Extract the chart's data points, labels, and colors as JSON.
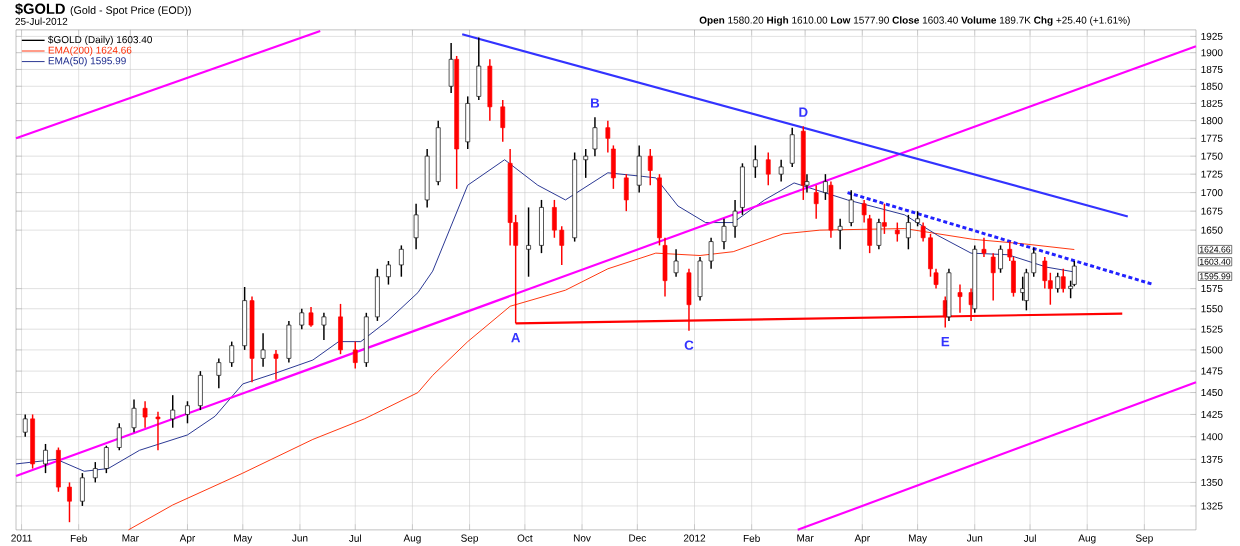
{
  "chart_data": {
    "type": "candlestick",
    "title": "$GOLD",
    "subtitle": "(Gold - Spot Price (EOD))",
    "annotations": [
      "25-Jul-2012",
      "**Open** 1580.20 **High** 1610.00 **Low** 1577.90 **Close** 1603.40 **Volume** 189.7K **Chg** +25.40 (+1.61%)",
      {
        "text": "A",
        "x": "2011-09-26",
        "y": 1532
      },
      {
        "text": "B",
        "x": "2011-11-08",
        "y": 1805
      },
      {
        "text": "C",
        "x": "2011-12-29",
        "y": 1523
      },
      {
        "text": "D",
        "x": "2012-02-29",
        "y": 1792
      },
      {
        "text": "E",
        "x": "2012-05-16",
        "y": 1527
      },
      "1624.66",
      "1603.40",
      "1595.99"
    ],
    "series": [
      {
        "name": "$GOLD (Daily) 1603.40",
        "x": [
          "2011-01-03",
          "2011-01-07",
          "2011-01-14",
          "2011-01-21",
          "2011-01-27",
          "2011-02-03",
          "2011-02-10",
          "2011-02-16",
          "2011-02-23",
          "2011-03-03",
          "2011-03-09",
          "2011-03-16",
          "2011-03-24",
          "2011-04-01",
          "2011-04-08",
          "2011-04-18",
          "2011-04-25",
          "2011-05-02",
          "2011-05-06",
          "2011-05-12",
          "2011-05-19",
          "2011-05-26",
          "2011-06-02",
          "2011-06-07",
          "2011-06-14",
          "2011-06-23",
          "2011-07-01",
          "2011-07-07",
          "2011-07-13",
          "2011-07-19",
          "2011-07-26",
          "2011-08-03",
          "2011-08-09",
          "2011-08-15",
          "2011-08-22",
          "2011-08-25",
          "2011-08-31",
          "2011-09-06",
          "2011-09-12",
          "2011-09-19",
          "2011-09-23",
          "2011-09-26",
          "2011-10-03",
          "2011-10-10",
          "2011-10-17",
          "2011-10-21",
          "2011-10-28",
          "2011-11-03",
          "2011-11-08",
          "2011-11-15",
          "2011-11-18",
          "2011-11-25",
          "2011-12-02",
          "2011-12-08",
          "2011-12-13",
          "2011-12-16",
          "2011-12-22",
          "2011-12-29",
          "2012-01-04",
          "2012-01-10",
          "2012-01-17",
          "2012-01-23",
          "2012-01-27",
          "2012-02-03",
          "2012-02-10",
          "2012-02-17",
          "2012-02-23",
          "2012-02-29",
          "2012-03-02",
          "2012-03-07",
          "2012-03-12",
          "2012-03-15",
          "2012-03-20",
          "2012-03-26",
          "2012-04-02",
          "2012-04-05",
          "2012-04-10",
          "2012-04-13",
          "2012-04-20",
          "2012-04-26",
          "2012-05-01",
          "2012-05-04",
          "2012-05-08",
          "2012-05-11",
          "2012-05-16",
          "2012-05-18",
          "2012-05-24",
          "2012-05-30",
          "2012-06-01",
          "2012-06-06",
          "2012-06-11",
          "2012-06-15",
          "2012-06-20",
          "2012-06-22",
          "2012-06-27",
          "2012-06-29",
          "2012-07-03",
          "2012-07-09",
          "2012-07-12",
          "2012-07-16",
          "2012-07-19",
          "2012-07-23",
          "2012-07-25"
        ],
        "ohlc": [
          [
            1405,
            1425,
            1400,
            1420
          ],
          [
            1420,
            1425,
            1365,
            1370
          ],
          [
            1370,
            1392,
            1360,
            1385
          ],
          [
            1385,
            1388,
            1340,
            1345
          ],
          [
            1345,
            1350,
            1308,
            1330
          ],
          [
            1330,
            1360,
            1325,
            1355
          ],
          [
            1355,
            1372,
            1350,
            1365
          ],
          [
            1365,
            1390,
            1360,
            1388
          ],
          [
            1388,
            1415,
            1385,
            1410
          ],
          [
            1410,
            1442,
            1405,
            1432
          ],
          [
            1432,
            1440,
            1410,
            1422
          ],
          [
            1422,
            1428,
            1385,
            1420
          ],
          [
            1420,
            1447,
            1410,
            1430
          ],
          [
            1425,
            1440,
            1415,
            1435
          ],
          [
            1435,
            1475,
            1430,
            1470
          ],
          [
            1470,
            1490,
            1455,
            1485
          ],
          [
            1485,
            1510,
            1480,
            1505
          ],
          [
            1505,
            1577,
            1500,
            1560
          ],
          [
            1560,
            1565,
            1462,
            1490
          ],
          [
            1490,
            1520,
            1480,
            1500
          ],
          [
            1495,
            1500,
            1465,
            1490
          ],
          [
            1490,
            1535,
            1485,
            1530
          ],
          [
            1530,
            1550,
            1525,
            1545
          ],
          [
            1545,
            1552,
            1528,
            1530
          ],
          [
            1530,
            1545,
            1512,
            1540
          ],
          [
            1540,
            1556,
            1495,
            1500
          ],
          [
            1500,
            1510,
            1478,
            1485
          ],
          [
            1485,
            1545,
            1480,
            1540
          ],
          [
            1540,
            1600,
            1535,
            1590
          ],
          [
            1590,
            1610,
            1580,
            1605
          ],
          [
            1605,
            1630,
            1590,
            1625
          ],
          [
            1640,
            1685,
            1625,
            1670
          ],
          [
            1690,
            1760,
            1680,
            1750
          ],
          [
            1715,
            1800,
            1710,
            1790
          ],
          [
            1850,
            1915,
            1840,
            1890
          ],
          [
            1890,
            1895,
            1705,
            1760
          ],
          [
            1770,
            1835,
            1760,
            1825
          ],
          [
            1835,
            1923,
            1830,
            1880
          ],
          [
            1880,
            1890,
            1800,
            1820
          ],
          [
            1820,
            1830,
            1770,
            1790
          ],
          [
            1740,
            1760,
            1630,
            1660
          ],
          [
            1660,
            1670,
            1532,
            1630
          ],
          [
            1625,
            1680,
            1590,
            1630
          ],
          [
            1630,
            1690,
            1620,
            1680
          ],
          [
            1680,
            1690,
            1640,
            1650
          ],
          [
            1650,
            1655,
            1605,
            1630
          ],
          [
            1640,
            1755,
            1635,
            1745
          ],
          [
            1745,
            1760,
            1720,
            1750
          ],
          [
            1760,
            1805,
            1750,
            1790
          ],
          [
            1790,
            1800,
            1755,
            1775
          ],
          [
            1760,
            1765,
            1705,
            1720
          ],
          [
            1720,
            1725,
            1675,
            1690
          ],
          [
            1710,
            1765,
            1700,
            1750
          ],
          [
            1750,
            1760,
            1710,
            1730
          ],
          [
            1720,
            1725,
            1630,
            1640
          ],
          [
            1630,
            1640,
            1565,
            1585
          ],
          [
            1595,
            1625,
            1590,
            1610
          ],
          [
            1595,
            1600,
            1523,
            1555
          ],
          [
            1565,
            1615,
            1560,
            1610
          ],
          [
            1610,
            1640,
            1600,
            1635
          ],
          [
            1635,
            1665,
            1625,
            1655
          ],
          [
            1655,
            1690,
            1640,
            1675
          ],
          [
            1680,
            1740,
            1670,
            1735
          ],
          [
            1735,
            1765,
            1720,
            1745
          ],
          [
            1745,
            1755,
            1710,
            1725
          ],
          [
            1725,
            1745,
            1715,
            1735
          ],
          [
            1740,
            1790,
            1735,
            1780
          ],
          [
            1785,
            1792,
            1690,
            1710
          ],
          [
            1710,
            1725,
            1700,
            1715
          ],
          [
            1700,
            1710,
            1665,
            1685
          ],
          [
            1700,
            1725,
            1690,
            1715
          ],
          [
            1710,
            1715,
            1640,
            1650
          ],
          [
            1650,
            1665,
            1625,
            1655
          ],
          [
            1660,
            1703,
            1655,
            1690
          ],
          [
            1685,
            1690,
            1660,
            1670
          ],
          [
            1665,
            1670,
            1620,
            1630
          ],
          [
            1630,
            1665,
            1625,
            1660
          ],
          [
            1660,
            1685,
            1645,
            1655
          ],
          [
            1650,
            1660,
            1635,
            1645
          ],
          [
            1640,
            1670,
            1625,
            1660
          ],
          [
            1660,
            1675,
            1655,
            1665
          ],
          [
            1655,
            1660,
            1635,
            1640
          ],
          [
            1640,
            1645,
            1590,
            1600
          ],
          [
            1595,
            1600,
            1575,
            1580
          ],
          [
            1560,
            1565,
            1527,
            1540
          ],
          [
            1540,
            1600,
            1535,
            1595
          ],
          [
            1570,
            1580,
            1545,
            1565
          ],
          [
            1570,
            1575,
            1535,
            1555
          ],
          [
            1550,
            1630,
            1545,
            1625
          ],
          [
            1625,
            1640,
            1615,
            1620
          ],
          [
            1615,
            1620,
            1560,
            1595
          ],
          [
            1600,
            1630,
            1595,
            1625
          ],
          [
            1625,
            1635,
            1610,
            1615
          ],
          [
            1610,
            1615,
            1565,
            1570
          ],
          [
            1570,
            1590,
            1560,
            1575
          ],
          [
            1560,
            1600,
            1548,
            1595
          ],
          [
            1595,
            1627,
            1590,
            1620
          ],
          [
            1610,
            1615,
            1575,
            1585
          ],
          [
            1585,
            1595,
            1555,
            1575
          ],
          [
            1575,
            1595,
            1570,
            1590
          ],
          [
            1590,
            1600,
            1570,
            1575
          ],
          [
            1575,
            1585,
            1563,
            1578
          ],
          [
            1580.2,
            1610,
            1577.9,
            1603.4
          ]
        ],
        "colors": [
          "#000000",
          "#ff0000",
          "#000000",
          "#ff0000",
          "#ff0000",
          "#000000",
          "#000000",
          "#000000",
          "#000000",
          "#000000",
          "#ff0000",
          "#ff0000",
          "#000000",
          "#000000",
          "#000000",
          "#000000",
          "#000000",
          "#000000",
          "#ff0000",
          "#000000",
          "#ff0000",
          "#000000",
          "#000000",
          "#ff0000",
          "#000000",
          "#ff0000",
          "#ff0000",
          "#000000",
          "#000000",
          "#000000",
          "#000000",
          "#000000",
          "#000000",
          "#000000",
          "#000000",
          "#ff0000",
          "#000000",
          "#000000",
          "#ff0000",
          "#ff0000",
          "#ff0000",
          "#ff0000",
          "#000000",
          "#000000",
          "#ff0000",
          "#ff0000",
          "#000000",
          "#000000",
          "#000000",
          "#ff0000",
          "#ff0000",
          "#ff0000",
          "#000000",
          "#ff0000",
          "#ff0000",
          "#ff0000",
          "#000000",
          "#ff0000",
          "#000000",
          "#000000",
          "#000000",
          "#000000",
          "#000000",
          "#000000",
          "#ff0000",
          "#000000",
          "#000000",
          "#ff0000",
          "#000000",
          "#ff0000",
          "#000000",
          "#ff0000",
          "#000000",
          "#000000",
          "#ff0000",
          "#ff0000",
          "#000000",
          "#ff0000",
          "#ff0000",
          "#000000",
          "#000000",
          "#ff0000",
          "#ff0000",
          "#ff0000",
          "#ff0000",
          "#000000",
          "#ff0000",
          "#ff0000",
          "#000000",
          "#ff0000",
          "#ff0000",
          "#000000",
          "#ff0000",
          "#ff0000",
          "#000000",
          "#000000",
          "#000000",
          "#ff0000",
          "#ff0000",
          "#000000",
          "#ff0000",
          "#000000",
          "#000000"
        ]
      },
      {
        "name": "EMA(200) 1624.66",
        "type": "line",
        "color": "#ff2a00",
        "x": [
          "2011-02-28",
          "2011-03-24",
          "2011-05-01",
          "2011-06-08",
          "2011-07-06",
          "2011-08-04",
          "2011-08-12",
          "2011-08-31",
          "2011-09-23",
          "2011-10-23",
          "2011-11-15",
          "2011-12-11",
          "2012-01-04",
          "2012-01-22",
          "2012-02-18",
          "2012-03-09",
          "2012-04-24",
          "2012-05-31",
          "2012-06-28",
          "2012-07-25"
        ],
        "values": [
          1300,
          1326,
          1360,
          1397,
          1420,
          1450,
          1470,
          1510,
          1553,
          1573,
          1600,
          1620,
          1617,
          1622,
          1645,
          1650,
          1652,
          1638,
          1632,
          1624.66
        ]
      },
      {
        "name": "EMA(50) 1595.99",
        "type": "line",
        "color": "#1c2a8c",
        "x": [
          "2010-12-29",
          "2011-01-20",
          "2011-02-04",
          "2011-02-17",
          "2011-03-06",
          "2011-04-01",
          "2011-04-16",
          "2011-05-01",
          "2011-05-18",
          "2011-06-08",
          "2011-06-22",
          "2011-07-04",
          "2011-07-19",
          "2011-08-04",
          "2011-08-12",
          "2011-08-31",
          "2011-09-20",
          "2011-10-08",
          "2011-10-23",
          "2011-11-15",
          "2011-12-04",
          "2011-12-11",
          "2011-12-23",
          "2012-01-07",
          "2012-01-22",
          "2012-02-08",
          "2012-02-24",
          "2012-03-24",
          "2012-04-24",
          "2012-05-12",
          "2012-05-30",
          "2012-06-19",
          "2012-07-10",
          "2012-07-25"
        ],
        "values": [
          1370,
          1375,
          1362,
          1365,
          1385,
          1402,
          1423,
          1460,
          1472,
          1488,
          1510,
          1510,
          1536,
          1570,
          1597,
          1710,
          1745,
          1710,
          1690,
          1727,
          1722,
          1720,
          1682,
          1660,
          1660,
          1690,
          1713,
          1690,
          1670,
          1643,
          1620,
          1618,
          1602,
          1595.99
        ]
      },
      {
        "type": "line",
        "color": "#ff00ff",
        "x": [
          "2010-12-29",
          "2011-06-12"
        ],
        "values": [
          1775,
          1933
        ]
      },
      {
        "type": "line",
        "color": "#ff00ff",
        "x": [
          "2010-12-29",
          "2012-09-29"
        ],
        "values": [
          1357,
          1910
        ]
      },
      {
        "type": "line",
        "color": "#ff00ff",
        "x": [
          "2012-02-26",
          "2012-09-29"
        ],
        "values": [
          1300,
          1462
        ]
      },
      {
        "type": "line",
        "color": "#3333ff",
        "x": [
          "2011-08-28",
          "2012-08-23"
        ],
        "values": [
          1928,
          1668
        ]
      },
      {
        "type": "line",
        "color": "#ff0000",
        "x": [
          "2011-09-26",
          "2012-08-20"
        ],
        "values": [
          1532,
          1544
        ]
      },
      {
        "type": "line",
        "color": "#2222ff",
        "line_style": "dashed",
        "x": [
          "2012-03-24",
          "2012-09-06"
        ],
        "values": [
          1700,
          1580
        ]
      }
    ],
    "xlim": [
      "2010-12-29",
      "2012-09-29"
    ],
    "xticks": [
      {
        "value": "2011-01-01",
        "label": "2011"
      },
      {
        "value": "2011-02-01",
        "label": "Feb"
      },
      {
        "value": "2011-03-01",
        "label": "Mar"
      },
      {
        "value": "2011-04-01",
        "label": "Apr"
      },
      {
        "value": "2011-05-01",
        "label": "May"
      },
      {
        "value": "2011-06-01",
        "label": "Jun"
      },
      {
        "value": "2011-07-01",
        "label": "Jul"
      },
      {
        "value": "2011-08-01",
        "label": "Aug"
      },
      {
        "value": "2011-09-01",
        "label": "Sep"
      },
      {
        "value": "2011-10-01",
        "label": "Oct"
      },
      {
        "value": "2011-11-01",
        "label": "Nov"
      },
      {
        "value": "2011-12-01",
        "label": "Dec"
      },
      {
        "value": "2012-01-01",
        "label": "2012"
      },
      {
        "value": "2012-02-01",
        "label": "Feb"
      },
      {
        "value": "2012-03-01",
        "label": "Mar"
      },
      {
        "value": "2012-04-01",
        "label": "Apr"
      },
      {
        "value": "2012-05-01",
        "label": "May"
      },
      {
        "value": "2012-06-01",
        "label": "Jun"
      },
      {
        "value": "2012-07-01",
        "label": "Jul"
      },
      {
        "value": "2012-08-01",
        "label": "Aug"
      },
      {
        "value": "2012-09-01",
        "label": "Sep"
      }
    ],
    "ylim": [
      1300,
      1935
    ],
    "yticks": [
      1325,
      1350,
      1375,
      1400,
      1425,
      1450,
      1475,
      1500,
      1525,
      1550,
      1575,
      1650,
      1675,
      1700,
      1725,
      1750,
      1775,
      1800,
      1825,
      1850,
      1875,
      1900,
      1925
    ],
    "log": true,
    "grid": true,
    "legend": "top left"
  }
}
